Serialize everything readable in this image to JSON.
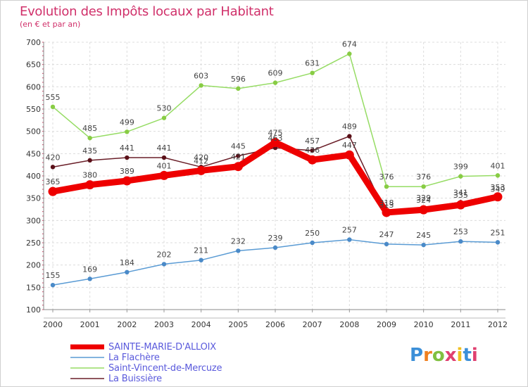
{
  "title": "Evolution des Impôts locaux par Habitant",
  "subtitle": "(en € et par an)",
  "logo": {
    "text": "Proxiti",
    "letters": [
      "P",
      "r",
      "o",
      "x",
      "i",
      "t",
      "i"
    ],
    "colors": [
      "#3b8fd8",
      "#f08020",
      "#80c040",
      "#e04070",
      "#f0c020",
      "#3b8fd8",
      "#e04070"
    ]
  },
  "chart_data": {
    "type": "line",
    "title": "Evolution des Impôts locaux par Habitant",
    "subtitle": "(en € et par an)",
    "xlabel": "",
    "ylabel": "",
    "ylim": [
      100,
      700
    ],
    "yticks": [
      "100",
      "150",
      "200",
      "250",
      "300",
      "350",
      "400",
      "450",
      "500",
      "550",
      "600",
      "650",
      "700"
    ],
    "categories": [
      "2000",
      "2001",
      "2002",
      "2003",
      "2004",
      "2005",
      "2006",
      "2007",
      "2008",
      "2009",
      "2010",
      "2011",
      "2012"
    ],
    "grid": true,
    "legend_position": "bottom-left",
    "series": [
      {
        "name": "SAINTE-MARIE-D'ALLOIX",
        "color": "#ee0000",
        "values": [
          365,
          380,
          389,
          401,
          412,
          421,
          475,
          436,
          447,
          318,
          324,
          335,
          353
        ]
      },
      {
        "name": "La Flachère",
        "color": "#5a9bd4",
        "values": [
          155,
          169,
          184,
          202,
          211,
          232,
          239,
          250,
          257,
          247,
          245,
          253,
          251
        ]
      },
      {
        "name": "Saint-Vincent-de-Mercuze",
        "color": "#96dc64",
        "values": [
          555,
          485,
          499,
          530,
          603,
          596,
          609,
          631,
          674,
          376,
          376,
          399,
          401
        ]
      },
      {
        "name": "La Buissière",
        "color": "#6a1e28",
        "values": [
          420,
          435,
          441,
          441,
          420,
          445,
          463,
          457,
          489,
          313,
          329,
          341,
          349
        ]
      }
    ]
  }
}
